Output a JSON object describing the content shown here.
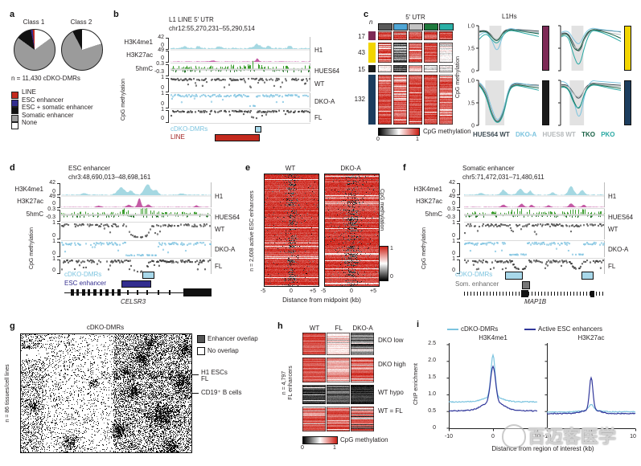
{
  "watermark": {
    "text": "百迈客医学"
  },
  "panel_a": {
    "label": "a",
    "pies": [
      {
        "name": "Class 1",
        "slices": [
          {
            "label": "None",
            "color": "#ffffff",
            "pct": 15
          },
          {
            "label": "Somatic enhancer",
            "color": "#9b9b9b",
            "pct": 70
          },
          {
            "label": "ESC + somatic enhancer",
            "color": "#111111",
            "pct": 12
          },
          {
            "label": "ESC enhancer",
            "color": "#332e8f",
            "pct": 1.5
          },
          {
            "label": "LINE",
            "color": "#c42a1e",
            "pct": 1.5
          }
        ]
      },
      {
        "name": "Class 2",
        "slices": [
          {
            "label": "None",
            "color": "#ffffff",
            "pct": 20
          },
          {
            "label": "Somatic enhancer",
            "color": "#9b9b9b",
            "pct": 72.5
          },
          {
            "label": "ESC + somatic enhancer",
            "color": "#111111",
            "pct": 7.5
          }
        ]
      }
    ],
    "n_label": "n = 11,430 cDKO-DMRs",
    "legend": [
      {
        "label": "LINE",
        "color": "#c42a1e"
      },
      {
        "label": "ESC enhancer",
        "color": "#332e8f"
      },
      {
        "label": "ESC + somatic enhancer",
        "color": "#111111"
      },
      {
        "label": "Somatic enhancer",
        "color": "#9b9b9b"
      },
      {
        "label": "None",
        "color": "#ffffff"
      }
    ]
  },
  "panel_b": {
    "label": "b",
    "title": "L1 LINE 5′ UTR",
    "region": "chr12:55,270,231–55,290,514",
    "track_labels": [
      "H3K4me1",
      "H3K27ac",
      "5hmC",
      "CpG methylation"
    ],
    "scales": [
      [
        "42",
        "0"
      ],
      [
        "49",
        "0"
      ],
      [
        "0.3",
        "-0.3"
      ],
      [
        "1",
        "0"
      ],
      [
        "1",
        "0"
      ],
      [
        "1",
        "0"
      ]
    ],
    "cell_labels": [
      "H1",
      "HUES64",
      "WT",
      "DKO-A",
      "FL"
    ],
    "ann_dmr": "cDKO-DMRs",
    "ann_line": "LINE"
  },
  "panel_c": {
    "label": "c",
    "n_header": "n",
    "title": "5′ UTR",
    "header_cols": [
      "#595959",
      "#4fa6d5",
      "#c4c4c4",
      "#1e7a3c",
      "#2ab0a6"
    ],
    "groups": [
      {
        "n": "17",
        "color": "#7d2a56"
      },
      {
        "n": "43",
        "color": "#f2d500"
      },
      {
        "n": "15",
        "color": "#1a1a1a"
      },
      {
        "n": "132",
        "color": "#1c3d5e"
      }
    ],
    "colorbar": {
      "label": "CpG methylation",
      "min": "0",
      "max": "1"
    },
    "right": {
      "title": "L1Hs",
      "ylabel": "CpG methylation",
      "yticks": [
        "1.0",
        "0.5",
        "0"
      ],
      "legend": [
        {
          "label": "HUES64 WT",
          "color": "#3c4a52"
        },
        {
          "label": "DKO-A",
          "color": "#7cc4df"
        },
        {
          "label": "HUES8 WT",
          "color": "#b5b9bb"
        },
        {
          "label": "TKO",
          "color": "#176044"
        },
        {
          "label": "PKO",
          "color": "#2aa9a3"
        }
      ]
    }
  },
  "panel_d": {
    "label": "d",
    "title": "ESC enhancer",
    "region": "chr3:48,690,013–48,698,161",
    "track_labels": [
      "H3K4me1",
      "H3K27ac",
      "5hmC",
      "CpG methylation"
    ],
    "scales": [
      [
        "42",
        "0"
      ],
      [
        "49",
        "0"
      ],
      [
        "0.3",
        "-0.3"
      ],
      [
        "1",
        "0"
      ],
      [
        "1",
        "0"
      ],
      [
        "1",
        "0"
      ]
    ],
    "cell_labels": [
      "H1",
      "HUES64",
      "WT",
      "DKO-A",
      "FL"
    ],
    "ann_dmr": "cDKO-DMRs",
    "ann_enh": "ESC enhancer",
    "gene": "CELSR3"
  },
  "panel_e": {
    "label": "e",
    "titles": [
      "WT",
      "DKO-A"
    ],
    "ylabel": "n = 2,608 active ESC enhancers",
    "xticks": [
      "-5",
      "0",
      "+5"
    ],
    "xlabel": "Distance from midpoint (kb)",
    "colorbar": {
      "label": "CpG methylation",
      "max": "1",
      "min": "0"
    }
  },
  "panel_f": {
    "label": "f",
    "title": "Somatic enhancer",
    "region": "chr5:71,472,031–71,480,611",
    "track_labels": [
      "H3K4me1",
      "H3K27ac",
      "5hmC",
      "CpG methylation"
    ],
    "scales": [
      [
        "42",
        "0"
      ],
      [
        "49",
        "0"
      ],
      [
        "0.3",
        "-0.3"
      ],
      [
        "1",
        "0"
      ],
      [
        "1",
        "0"
      ],
      [
        "1",
        "0"
      ]
    ],
    "cell_labels": [
      "H1",
      "HUES64",
      "WT",
      "DKO-A",
      "FL"
    ],
    "ann_dmr": "cDKO-DMRs",
    "ann_enh": "Som. enhancer",
    "gene": "MAP1B"
  },
  "panel_g": {
    "label": "g",
    "title": "cDKO-DMRs",
    "ylabel": "n = 86 tissues/cell lines",
    "legend": [
      {
        "label": "Enhancer overlap",
        "color": "#555555"
      },
      {
        "label": "No overlap",
        "color": "#ffffff"
      }
    ],
    "marks": [
      "H1 ESCs",
      "FL",
      "CD19⁺ B cells"
    ]
  },
  "panel_h": {
    "label": "h",
    "columns": [
      "WT",
      "FL",
      "DKO-A"
    ],
    "ylabel_line1": "n = 4,797",
    "ylabel_line2": "FL enhancers",
    "groups": [
      "DKO low",
      "DKO high",
      "WT hypo",
      "WT = FL"
    ],
    "colorbar": {
      "label": "CpG methylation",
      "min": "0",
      "max": "1"
    }
  },
  "panel_i": {
    "label": "i",
    "legend": [
      {
        "label": "cDKO-DMRs",
        "color": "#7cc4df"
      },
      {
        "label": "Active ESC enhancers",
        "color": "#31379b"
      }
    ],
    "subtitles": [
      "H3K4me1",
      "H3K27ac"
    ],
    "ylabel": "ChIP enrichment",
    "yticks": [
      "2.5",
      "2.0",
      "1.5",
      "1.0",
      "0.5",
      "0"
    ],
    "xticks": [
      "-10",
      "0",
      "10"
    ],
    "xlabel": "Distance from region of interest (kb)"
  },
  "chart_data": [
    {
      "id": "a_class1",
      "type": "pie",
      "title": "Class 1",
      "slices": [
        {
          "label": "None",
          "pct": 15
        },
        {
          "label": "Somatic enhancer",
          "pct": 70
        },
        {
          "label": "ESC + somatic enhancer",
          "pct": 12
        },
        {
          "label": "ESC enhancer",
          "pct": 1.5
        },
        {
          "label": "LINE",
          "pct": 1.5
        }
      ]
    },
    {
      "id": "a_class2",
      "type": "pie",
      "title": "Class 2",
      "slices": [
        {
          "label": "None",
          "pct": 20
        },
        {
          "label": "Somatic enhancer",
          "pct": 72.5
        },
        {
          "label": "ESC + somatic enhancer",
          "pct": 7.5
        }
      ]
    },
    {
      "id": "c_L1Hs",
      "type": "line",
      "title": "L1Hs",
      "ylabel": "CpG methylation",
      "ylim": [
        0,
        1
      ],
      "x": [
        0,
        0.1,
        0.2,
        0.3,
        0.4,
        0.5,
        0.6,
        0.7,
        0.8,
        0.9,
        1
      ],
      "plots": [
        {
          "bar_color": "#7d2a56",
          "band": [
            0.17,
            0.37
          ],
          "series": [
            {
              "name": "HUES64 WT",
              "color": "#3c4a52",
              "values": [
                0.88,
                0.91,
                0.8,
                0.62,
                0.88,
                0.93,
                0.92,
                0.91,
                0.9,
                0.89,
                0.88
              ]
            },
            {
              "name": "DKO-A",
              "color": "#7cc4df",
              "values": [
                0.78,
                0.9,
                0.72,
                0.37,
                0.82,
                0.95,
                0.92,
                0.89,
                0.87,
                0.85,
                0.84
              ]
            },
            {
              "name": "HUES8 WT",
              "color": "#b5b9bb",
              "values": [
                0.85,
                0.89,
                0.78,
                0.66,
                0.86,
                0.9,
                0.89,
                0.88,
                0.87,
                0.86,
                0.85
              ]
            },
            {
              "name": "TKO",
              "color": "#176044",
              "values": [
                0.86,
                0.9,
                0.76,
                0.63,
                0.85,
                0.91,
                0.9,
                0.88,
                0.86,
                0.84,
                0.82
              ]
            },
            {
              "name": "PKO",
              "color": "#2aa9a3",
              "values": [
                0.7,
                0.86,
                0.7,
                0.58,
                0.8,
                0.9,
                0.88,
                0.85,
                0.82,
                0.79,
                0.76
              ]
            }
          ]
        },
        {
          "bar_color": "#f2d500",
          "band": [
            0.17,
            0.37
          ],
          "series": [
            {
              "name": "HUES64 WT",
              "color": "#3c4a52",
              "values": [
                0.82,
                0.88,
                0.6,
                0.37,
                0.75,
                0.92,
                0.91,
                0.9,
                0.89,
                0.88,
                0.86
              ]
            },
            {
              "name": "DKO-A",
              "color": "#7cc4df",
              "values": [
                0.85,
                0.92,
                0.7,
                0.55,
                0.85,
                0.95,
                0.93,
                0.91,
                0.9,
                0.88,
                0.87
              ]
            },
            {
              "name": "HUES8 WT",
              "color": "#b5b9bb",
              "values": [
                0.8,
                0.86,
                0.55,
                0.45,
                0.72,
                0.9,
                0.88,
                0.86,
                0.84,
                0.82,
                0.8
              ]
            },
            {
              "name": "TKO",
              "color": "#176044",
              "values": [
                0.78,
                0.88,
                0.5,
                0.42,
                0.8,
                0.92,
                0.9,
                0.87,
                0.83,
                0.78,
                0.72
              ]
            },
            {
              "name": "PKO",
              "color": "#2aa9a3",
              "values": [
                0.75,
                0.85,
                0.35,
                0.05,
                0.6,
                0.9,
                0.88,
                0.84,
                0.78,
                0.72,
                0.65
              ]
            }
          ]
        },
        {
          "bar_color": "#1a1a1a",
          "band": [
            0.1,
            0.42
          ],
          "series": [
            {
              "name": "HUES64 WT",
              "color": "#3c4a52",
              "values": [
                0.93,
                0.8,
                0.3,
                0.03,
                0.25,
                0.85,
                0.93,
                0.92,
                0.91,
                0.9,
                0.89
              ]
            },
            {
              "name": "DKO-A",
              "color": "#7cc4df",
              "values": [
                0.95,
                0.85,
                0.4,
                0.06,
                0.3,
                0.88,
                0.95,
                0.93,
                0.91,
                0.89,
                0.88
              ]
            },
            {
              "name": "HUES8 WT",
              "color": "#b5b9bb",
              "values": [
                0.92,
                0.78,
                0.28,
                0.02,
                0.22,
                0.83,
                0.91,
                0.9,
                0.89,
                0.88,
                0.87
              ]
            },
            {
              "name": "TKO",
              "color": "#176044",
              "values": [
                0.9,
                0.75,
                0.25,
                0.02,
                0.2,
                0.82,
                0.9,
                0.89,
                0.87,
                0.85,
                0.83
              ]
            },
            {
              "name": "PKO",
              "color": "#2aa9a3",
              "values": [
                0.88,
                0.72,
                0.22,
                0.02,
                0.18,
                0.8,
                0.89,
                0.87,
                0.84,
                0.81,
                0.78
              ]
            }
          ]
        },
        {
          "bar_color": "#1c3d5e",
          "band": [
            0.14,
            0.38
          ],
          "series": [
            {
              "name": "HUES64 WT",
              "color": "#3c4a52",
              "values": [
                0.9,
                0.92,
                0.72,
                0.55,
                0.85,
                0.94,
                0.93,
                0.92,
                0.91,
                0.9,
                0.89
              ]
            },
            {
              "name": "DKO-A",
              "color": "#7cc4df",
              "values": [
                0.97,
                0.98,
                0.6,
                0.05,
                0.75,
                1.0,
                0.98,
                0.97,
                0.96,
                0.95,
                0.94
              ]
            },
            {
              "name": "HUES8 WT",
              "color": "#b5b9bb",
              "values": [
                0.88,
                0.9,
                0.7,
                0.6,
                0.83,
                0.91,
                0.9,
                0.89,
                0.88,
                0.87,
                0.86
              ]
            },
            {
              "name": "TKO",
              "color": "#176044",
              "values": [
                0.86,
                0.89,
                0.55,
                0.3,
                0.78,
                0.92,
                0.9,
                0.88,
                0.86,
                0.84,
                0.82
              ]
            },
            {
              "name": "PKO",
              "color": "#2aa9a3",
              "values": [
                0.84,
                0.88,
                0.5,
                0.33,
                0.76,
                0.9,
                0.89,
                0.86,
                0.83,
                0.8,
                0.78
              ]
            }
          ]
        }
      ]
    },
    {
      "id": "i_profiles",
      "type": "line",
      "ylabel": "ChIP enrichment",
      "ylim": [
        0,
        2.5
      ],
      "xlim": [
        -10,
        10
      ],
      "xlabel": "Distance from region of interest (kb)",
      "plots": [
        {
          "title": "H3K4me1",
          "series": [
            {
              "name": "cDKO-DMRs",
              "color": "#7cc4df",
              "params": {
                "b": 0.79,
                "a1": 0.16,
                "s1": 2.8,
                "a2": 1.24,
                "s2": 0.65
              },
              "values_step1": [
                0.79,
                0.79,
                0.79,
                0.79,
                0.79,
                0.8,
                0.81,
                0.84,
                0.89,
                1.05,
                2.18,
                1.05,
                0.89,
                0.84,
                0.81,
                0.8,
                0.79,
                0.79,
                0.79,
                0.78,
                0.78
              ]
            },
            {
              "name": "Active ESC enhancers",
              "color": "#31379b",
              "params": {
                "b": 0.52,
                "a1": 0.28,
                "s1": 3.2,
                "a2": 1.05,
                "s2": 0.8
              },
              "values_step1": [
                0.52,
                0.52,
                0.52,
                0.53,
                0.53,
                0.55,
                0.57,
                0.6,
                0.66,
                0.82,
                1.85,
                0.82,
                0.66,
                0.6,
                0.57,
                0.55,
                0.53,
                0.53,
                0.52,
                0.52,
                0.52
              ]
            }
          ]
        },
        {
          "title": "H3K27ac",
          "series": [
            {
              "name": "cDKO-DMRs",
              "color": "#7cc4df",
              "params": {
                "b": 0.49,
                "a1": 0.04,
                "s1": 3.0,
                "a2": 0.18,
                "s2": 0.8
              },
              "values_step1": [
                0.49,
                0.49,
                0.49,
                0.49,
                0.49,
                0.5,
                0.5,
                0.51,
                0.52,
                0.55,
                0.71,
                0.55,
                0.52,
                0.51,
                0.5,
                0.5,
                0.49,
                0.49,
                0.49,
                0.49,
                0.49
              ]
            },
            {
              "name": "Active ESC enhancers",
              "color": "#31379b",
              "params": {
                "b": 0.44,
                "a1": 0.12,
                "s1": 2.5,
                "a2": 0.96,
                "s2": 0.55
              },
              "values_step1": [
                0.44,
                0.44,
                0.44,
                0.44,
                0.45,
                0.45,
                0.46,
                0.48,
                0.52,
                0.62,
                1.52,
                0.62,
                0.52,
                0.48,
                0.46,
                0.45,
                0.45,
                0.44,
                0.44,
                0.44,
                0.44
              ]
            }
          ]
        }
      ]
    }
  ]
}
